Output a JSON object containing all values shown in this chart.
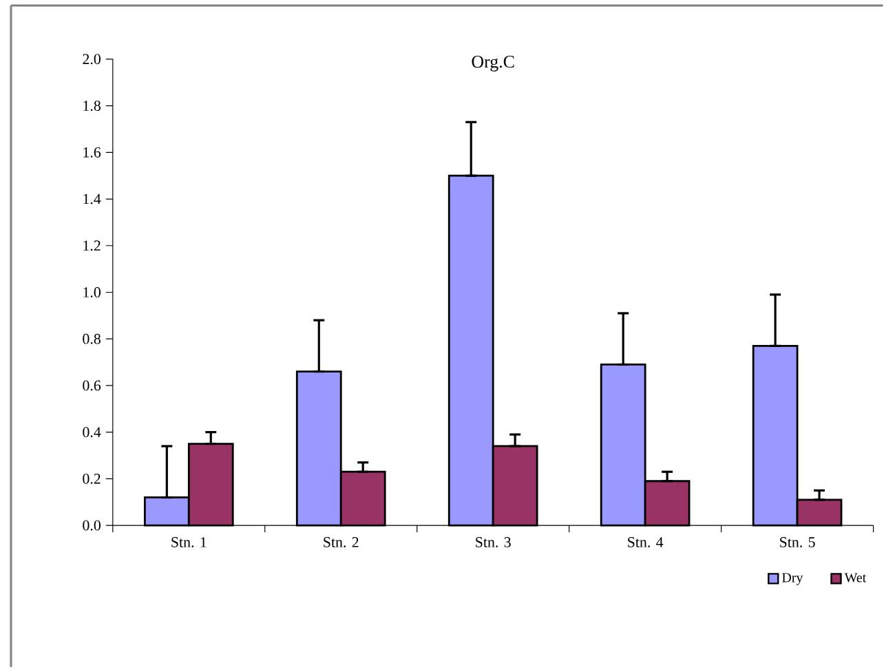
{
  "chart_data": {
    "type": "bar",
    "title": "Org.C",
    "categories": [
      "Stn. 1",
      "Stn. 2",
      "Stn. 3",
      "Stn. 4",
      "Stn. 5"
    ],
    "series": [
      {
        "name": "Dry",
        "color": "#9999ff",
        "values": [
          0.12,
          0.66,
          1.5,
          0.69,
          0.77
        ],
        "errors": [
          [
            0.12,
            0.34
          ],
          [
            0.66,
            0.88
          ],
          [
            1.5,
            1.73
          ],
          [
            0.69,
            0.91
          ],
          [
            0.77,
            0.99
          ]
        ]
      },
      {
        "name": "Wet",
        "color": "#993366",
        "values": [
          0.35,
          0.23,
          0.34,
          0.19,
          0.11
        ],
        "errors": [
          [
            0.35,
            0.4
          ],
          [
            0.23,
            0.27
          ],
          [
            0.34,
            0.39
          ],
          [
            0.19,
            0.23
          ],
          [
            0.11,
            0.15
          ]
        ]
      }
    ],
    "ylim": [
      0,
      2
    ],
    "yticks": [
      {
        "value": 0,
        "label": "0.0"
      },
      {
        "value": 0.2,
        "label": "0.2"
      },
      {
        "value": 0.4,
        "label": "0.4"
      },
      {
        "value": 0.6,
        "label": "0.6"
      },
      {
        "value": 0.8,
        "label": "0.8"
      },
      {
        "value": 1,
        "label": "1.0"
      },
      {
        "value": 1.2,
        "label": "1.2"
      },
      {
        "value": 1.4,
        "label": "1.4"
      },
      {
        "value": 1.6,
        "label": "1.6"
      },
      {
        "value": 1.8,
        "label": "1.8"
      },
      {
        "value": 2,
        "label": "2.0"
      }
    ],
    "grid": false,
    "legend": "bottom right"
  }
}
